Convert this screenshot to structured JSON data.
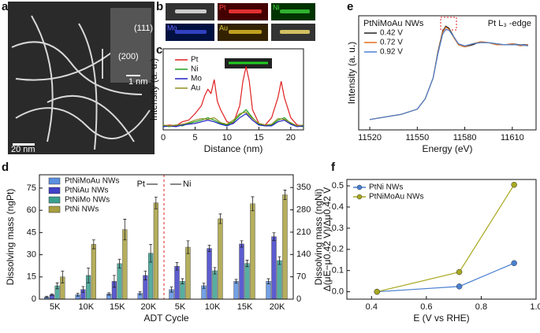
{
  "panel_letters": [
    "a",
    "b",
    "c",
    "d",
    "e",
    "f"
  ],
  "image_a": {
    "labels": [
      "(111)",
      "(200)",
      "1 nm",
      "20 nm"
    ]
  },
  "image_b": {
    "labels": [
      "Pt",
      "Ni",
      "Mo",
      "Au"
    ]
  },
  "chart_data": [
    {
      "type": "line",
      "xlabel": "Distance (nm)",
      "ylabel": "Intensity (a. u.)",
      "xlim": [
        0,
        22
      ],
      "xticks": [
        0,
        5,
        10,
        15,
        20
      ],
      "ylim": [
        0,
        1
      ],
      "series": [
        {
          "name": "Pt",
          "color": "#e02020",
          "x": [
            0,
            1,
            2,
            3,
            4,
            5,
            6,
            6.5,
            7,
            7.5,
            8,
            8.5,
            9,
            10,
            11,
            12,
            12.5,
            13,
            13.5,
            14,
            15,
            16,
            17,
            18,
            18.5,
            19,
            20,
            21,
            22
          ],
          "values": [
            0.05,
            0.06,
            0.05,
            0.1,
            0.12,
            0.2,
            0.3,
            0.42,
            0.5,
            0.45,
            0.62,
            0.35,
            0.25,
            0.1,
            0.08,
            0.3,
            0.6,
            0.78,
            0.6,
            0.25,
            0.08,
            0.06,
            0.15,
            0.4,
            0.6,
            0.4,
            0.15,
            0.06,
            0.05
          ]
        },
        {
          "name": "Ni",
          "color": "#20a020",
          "x": [
            0,
            1,
            2,
            3,
            4,
            5,
            6,
            7,
            8,
            9,
            10,
            11,
            12,
            13,
            14,
            15,
            16,
            17,
            18,
            19,
            20,
            21,
            22
          ],
          "values": [
            0.05,
            0.04,
            0.06,
            0.05,
            0.08,
            0.1,
            0.12,
            0.15,
            0.12,
            0.08,
            0.06,
            0.1,
            0.18,
            0.25,
            0.15,
            0.07,
            0.05,
            0.06,
            0.12,
            0.15,
            0.08,
            0.05,
            0.04
          ]
        },
        {
          "name": "Mo",
          "color": "#2020c0",
          "x": [
            0,
            1,
            2,
            3,
            4,
            5,
            6,
            7,
            8,
            9,
            10,
            11,
            12,
            13,
            14,
            15,
            16,
            17,
            18,
            19,
            20,
            21,
            22
          ],
          "values": [
            0.04,
            0.05,
            0.04,
            0.06,
            0.07,
            0.08,
            0.1,
            0.12,
            0.1,
            0.07,
            0.05,
            0.08,
            0.15,
            0.2,
            0.12,
            0.06,
            0.05,
            0.05,
            0.1,
            0.12,
            0.07,
            0.04,
            0.05
          ]
        },
        {
          "name": "Au",
          "color": "#909020",
          "x": [
            0,
            1,
            2,
            3,
            4,
            5,
            6,
            7,
            8,
            9,
            10,
            11,
            12,
            13,
            14,
            15,
            16,
            17,
            18,
            19,
            20,
            21,
            22
          ],
          "values": [
            0.06,
            0.05,
            0.06,
            0.07,
            0.09,
            0.12,
            0.14,
            0.13,
            0.15,
            0.09,
            0.07,
            0.12,
            0.2,
            0.22,
            0.14,
            0.08,
            0.06,
            0.07,
            0.14,
            0.13,
            0.09,
            0.05,
            0.06
          ]
        }
      ]
    },
    {
      "type": "bar",
      "xlabel": "ADT Cycle",
      "ylabel": "Dissolving mass (ngPt)",
      "annotation": "Pt",
      "categories": [
        "5K",
        "10K",
        "15K",
        "20K"
      ],
      "ylim": [
        0,
        84
      ],
      "yticks": [
        0,
        15,
        30,
        45,
        60,
        75
      ],
      "series": [
        {
          "name": "PtNiMoAu NWs",
          "color": "#5b8fe0",
          "values": [
            1.5,
            3,
            3.5,
            4
          ],
          "errors": [
            0.5,
            1,
            0.8,
            1
          ]
        },
        {
          "name": "PtNiAu NWs",
          "color": "#4040c8",
          "values": [
            3,
            6.5,
            12,
            16
          ],
          "errors": [
            0.6,
            2,
            4,
            3
          ]
        },
        {
          "name": "PtNiMo NWs",
          "color": "#3aa090",
          "values": [
            9,
            16,
            24,
            31
          ],
          "errors": [
            2,
            5,
            3,
            6
          ]
        },
        {
          "name": "PtNi NWs",
          "color": "#a8a040",
          "values": [
            15,
            37,
            47,
            65
          ],
          "errors": [
            4,
            3,
            7,
            4
          ]
        }
      ]
    },
    {
      "type": "bar",
      "y2label": "Dissolving mass (ngNi)",
      "annotation": "Ni",
      "categories": [
        "5K",
        "10K",
        "15K",
        "20K"
      ],
      "y2lim": [
        0,
        390
      ],
      "y2ticks": [
        0,
        70,
        140,
        210,
        280,
        350
      ],
      "series": [
        {
          "color": "#5b8fe0",
          "axis": "y2",
          "values": [
            30,
            42,
            56,
            56
          ],
          "errors": [
            8,
            8,
            6,
            8
          ]
        },
        {
          "color": "#4040c8",
          "axis": "y2",
          "values": [
            103,
            159,
            173,
            196
          ],
          "errors": [
            12,
            10,
            10,
            12
          ]
        },
        {
          "color": "#3aa090",
          "axis": "y2",
          "values": [
            56,
            89,
            112,
            121
          ],
          "errors": [
            8,
            10,
            10,
            12
          ]
        },
        {
          "color": "#a8a040",
          "axis": "y2",
          "values": [
            163,
            252,
            299,
            327
          ],
          "errors": [
            20,
            15,
            22,
            15
          ]
        }
      ]
    },
    {
      "type": "line",
      "title": "PtNiMoAu NWs",
      "annotation": "Pt L₃ -edge",
      "xlabel": "Energy (eV)",
      "ylabel": "Intensity (a. u.)",
      "xlim": [
        11513,
        11625
      ],
      "xticks": [
        11520,
        11550,
        11580,
        11610
      ],
      "ylim": [
        0,
        1.1
      ],
      "x": [
        11520,
        11540,
        11550,
        11555,
        11560,
        11563,
        11566,
        11568,
        11570,
        11573,
        11576,
        11580,
        11585,
        11590,
        11595,
        11600,
        11605,
        11610,
        11615,
        11620
      ],
      "series": [
        {
          "name": "0.42 V",
          "color": "#222222",
          "values": [
            0.1,
            0.15,
            0.2,
            0.3,
            0.5,
            0.75,
            0.95,
            1.0,
            0.98,
            0.9,
            0.82,
            0.8,
            0.82,
            0.85,
            0.84,
            0.83,
            0.82,
            0.83,
            0.82,
            0.82
          ]
        },
        {
          "name": "0.72 V",
          "color": "#e07020",
          "values": [
            0.1,
            0.15,
            0.2,
            0.3,
            0.5,
            0.74,
            0.94,
            0.99,
            0.97,
            0.89,
            0.82,
            0.8,
            0.83,
            0.85,
            0.84,
            0.82,
            0.82,
            0.83,
            0.81,
            0.82
          ]
        },
        {
          "name": "0.92 V",
          "color": "#4a80d0",
          "values": [
            0.1,
            0.15,
            0.2,
            0.3,
            0.5,
            0.73,
            0.92,
            0.97,
            0.96,
            0.9,
            0.83,
            0.81,
            0.83,
            0.84,
            0.84,
            0.83,
            0.82,
            0.82,
            0.82,
            0.81
          ]
        }
      ]
    },
    {
      "type": "line",
      "markers": true,
      "xlabel": "E (V vs RHE)",
      "ylabel": "Δ(μE−μ0.42 V)/Δμ0.42 V",
      "xlim": [
        0.31,
        1.0
      ],
      "xticks": [
        0.4,
        0.6,
        0.8,
        {
          "value": 1,
          "label": "1.0"
        }
      ],
      "ylim": [
        -0.035,
        0.53
      ],
      "yticks": [
        {
          "value": 0,
          "label": "0.0"
        },
        0.1,
        0.2,
        0.3,
        0.4,
        0.5
      ],
      "x": [
        0.42,
        0.72,
        0.92
      ],
      "series": [
        {
          "name": "PtNi NWs",
          "color": "#4a80d0",
          "values": [
            0,
            0.025,
            0.135
          ]
        },
        {
          "name": "PtNiMoAu NWs",
          "color": "#a8a820",
          "values": [
            0,
            0.093,
            0.505
          ]
        }
      ]
    }
  ]
}
